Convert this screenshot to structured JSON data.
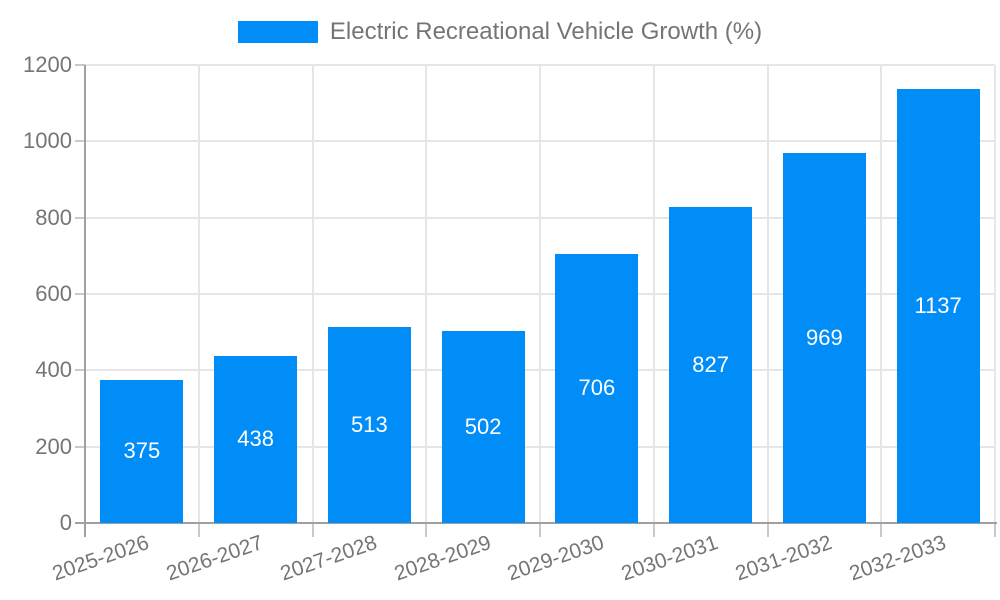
{
  "legend": {
    "label": "Electric Recreational Vehicle Growth (%)"
  },
  "chart_data": {
    "type": "bar",
    "title": "Electric Recreational Vehicle Growth (%)",
    "categories": [
      "2025-2026",
      "2026-2027",
      "2027-2028",
      "2028-2029",
      "2029-2030",
      "2030-2031",
      "2031-2032",
      "2032-2033"
    ],
    "values": [
      375,
      438,
      513,
      502,
      706,
      827,
      969,
      1137
    ],
    "xlabel": "",
    "ylabel": "",
    "ylim": [
      0,
      1200
    ],
    "yticks": [
      0,
      200,
      400,
      600,
      800,
      1000,
      1200
    ],
    "grid": true,
    "legend_position": "top",
    "bar_color": "#008DF8",
    "bar_label_color": "#ffffff",
    "gridline_color": "#e6e6e6",
    "tick_color": "#c9c9c9",
    "axis_color": "#a0a0a0",
    "text_color": "#757575"
  }
}
